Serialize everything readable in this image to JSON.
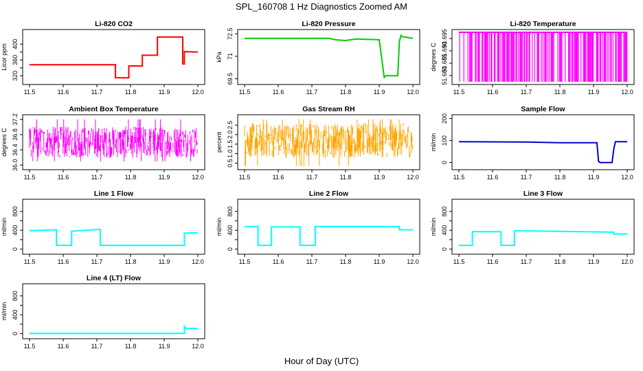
{
  "figure": {
    "title": "SPL_160708 1 Hz Diagnostics Zoomed AM",
    "xlabel": "Hour of Day (UTC)"
  },
  "chart_data": [
    {
      "type": "line",
      "title": "Li-820 CO2",
      "ylabel": "Licor ppm",
      "color": "#ff0000",
      "xlim": [
        11.5,
        12.0
      ],
      "ylim": [
        305,
        430
      ],
      "xticks": [
        "11.5",
        "11.6",
        "11.7",
        "11.8",
        "11.9",
        "12.0"
      ],
      "yticks": [
        320,
        360,
        400
      ],
      "yticks_extra": [
        340,
        380
      ],
      "series": [
        {
          "x": [
            11.5,
            11.755,
            11.755,
            11.755,
            11.795,
            11.795,
            11.835,
            11.835,
            11.88,
            11.88,
            11.955,
            11.955,
            11.96,
            11.96,
            12.0
          ],
          "y": [
            348,
            348,
            350,
            315,
            315,
            345,
            345,
            372,
            372,
            418,
            418,
            350,
            350,
            381,
            380
          ]
        }
      ]
    },
    {
      "type": "line",
      "title": "Li-820 Pressure",
      "ylabel": "kPa",
      "color": "#00cc00",
      "xlim": [
        11.5,
        12.0
      ],
      "ylim": [
        69.3,
        72.6
      ],
      "xticks": [
        "11.5",
        "11.6",
        "11.7",
        "11.8",
        "11.9",
        "12.0"
      ],
      "yticks": [
        69.5,
        71.0,
        72.5
      ],
      "series": [
        {
          "x": [
            11.5,
            11.75,
            11.77,
            11.8,
            11.83,
            11.9,
            11.915,
            11.92,
            11.955,
            11.96,
            11.965,
            11.97,
            12.0
          ],
          "y": [
            72.2,
            72.2,
            72.1,
            72.05,
            72.15,
            72.1,
            69.6,
            69.7,
            69.7,
            72.0,
            72.4,
            72.3,
            72.2
          ]
        }
      ]
    },
    {
      "type": "line",
      "title": "Li-820 Temperature",
      "ylabel": "degrees C",
      "color": "#ff00ff",
      "xlim": [
        11.5,
        12.0
      ],
      "ylim": [
        51.6775,
        51.6975
      ],
      "xticks": [
        "11.5",
        "11.6",
        "11.7",
        "11.8",
        "11.9",
        "12.0"
      ],
      "yticks": [
        51.68,
        51.685,
        51.69,
        51.695
      ],
      "yticks_labels": [
        "51.680",
        "51.685",
        "51.690",
        "51.695"
      ],
      "series": [
        {
          "x": [
            11.5,
            12.0
          ],
          "y": [
            51.6975,
            51.6975
          ]
        }
      ],
      "note_values": "toggles between 51.6775 and 51.6975"
    },
    {
      "type": "line",
      "title": "Ambient Box Temperature",
      "ylabel": "degrees C",
      "color": "#ff00ff",
      "xlim": [
        11.5,
        12.0
      ],
      "ylim": [
        35.95,
        37.25
      ],
      "xticks": [
        "11.5",
        "11.6",
        "11.7",
        "11.8",
        "11.9",
        "12.0"
      ],
      "yticks": [
        36.0,
        36.4,
        36.8,
        37.2
      ],
      "yticks_labels": [
        "36.0",
        "36.4",
        "36.8",
        "37.2"
      ],
      "series": [
        {
          "x": [
            11.5,
            12.0
          ],
          "y": [
            36.6,
            36.6
          ]
        }
      ],
      "range": [
        36.1,
        37.2
      ]
    },
    {
      "type": "line",
      "title": "Gas Stream RH",
      "ylabel": "percent",
      "color": "#ffa500",
      "xlim": [
        11.5,
        12.0
      ],
      "ylim": [
        0.3,
        2.9
      ],
      "xticks": [
        "11.5",
        "11.6",
        "11.7",
        "11.8",
        "11.9",
        "12.0"
      ],
      "yticks": [
        0.5,
        1.0,
        1.5,
        2.0,
        2.5
      ],
      "yticks_labels": [
        "0.5",
        "1.0",
        "1.5",
        "2.0",
        "2.5"
      ],
      "series": [
        {
          "x": [
            11.5,
            12.0
          ],
          "y": [
            1.7,
            1.7
          ]
        }
      ],
      "range": [
        0.35,
        2.8
      ]
    },
    {
      "type": "line",
      "title": "Sample Flow",
      "ylabel": "ml/min",
      "color": "#0000cc",
      "xlim": [
        11.5,
        12.0
      ],
      "ylim": [
        -20,
        205
      ],
      "xticks": [
        "11.5",
        "11.6",
        "11.7",
        "11.8",
        "11.9",
        "12.0"
      ],
      "yticks": [
        0,
        100,
        200
      ],
      "series": [
        {
          "x": [
            11.5,
            11.7,
            11.8,
            11.91,
            11.915,
            11.92,
            11.955,
            11.96,
            11.965,
            12.0
          ],
          "y": [
            95,
            93,
            90,
            90,
            5,
            0,
            0,
            60,
            95,
            95
          ]
        }
      ]
    },
    {
      "type": "line",
      "title": "Line 1 Flow",
      "ylabel": "ml/min",
      "color": "#00ffff",
      "xlim": [
        11.5,
        12.0
      ],
      "ylim": [
        -50,
        1000
      ],
      "xticks": [
        "11.5",
        "11.6",
        "11.7",
        "11.8",
        "11.9",
        "12.0"
      ],
      "yticks": [
        0,
        400,
        800
      ],
      "yticks_extra": [
        200,
        600
      ],
      "series": [
        {
          "x": [
            11.5,
            11.58,
            11.58,
            11.625,
            11.625,
            11.71,
            11.71,
            11.96,
            11.96,
            12.0
          ],
          "y": [
            390,
            410,
            80,
            80,
            380,
            420,
            80,
            80,
            340,
            350
          ]
        }
      ]
    },
    {
      "type": "line",
      "title": "Line 2 Flow",
      "ylabel": "ml/min",
      "color": "#00ffff",
      "xlim": [
        11.5,
        12.0
      ],
      "ylim": [
        -50,
        1000
      ],
      "xticks": [
        "11.5",
        "11.6",
        "11.7",
        "11.8",
        "11.9",
        "12.0"
      ],
      "yticks": [
        0,
        400,
        800
      ],
      "yticks_extra": [
        200,
        600
      ],
      "series": [
        {
          "x": [
            11.5,
            11.54,
            11.54,
            11.58,
            11.58,
            11.665,
            11.665,
            11.71,
            11.71,
            11.96,
            11.96,
            12.0
          ],
          "y": [
            480,
            480,
            80,
            80,
            470,
            470,
            80,
            80,
            480,
            480,
            410,
            410
          ]
        }
      ]
    },
    {
      "type": "line",
      "title": "Line 3 Flow",
      "ylabel": "ml/min",
      "color": "#00ffff",
      "xlim": [
        11.5,
        12.0
      ],
      "ylim": [
        -50,
        1000
      ],
      "xticks": [
        "11.5",
        "11.6",
        "11.7",
        "11.8",
        "11.9",
        "12.0"
      ],
      "yticks": [
        0,
        400,
        800
      ],
      "yticks_extra": [
        200,
        600
      ],
      "series": [
        {
          "x": [
            11.5,
            11.54,
            11.54,
            11.625,
            11.625,
            11.665,
            11.665,
            11.96,
            11.96,
            12.0
          ],
          "y": [
            80,
            80,
            370,
            370,
            80,
            80,
            390,
            360,
            320,
            320
          ]
        }
      ]
    },
    {
      "type": "line",
      "title": "Line 4 (LT) Flow",
      "ylabel": "ml/min",
      "color": "#00ffff",
      "xlim": [
        11.5,
        12.0
      ],
      "ylim": [
        -50,
        1000
      ],
      "xticks": [
        "11.5",
        "11.6",
        "11.7",
        "11.8",
        "11.9",
        "12.0"
      ],
      "yticks": [
        0,
        400,
        800
      ],
      "yticks_extra": [
        200,
        600
      ],
      "series": [
        {
          "x": [
            11.5,
            11.96,
            11.96,
            11.965,
            12.0
          ],
          "y": [
            5,
            5,
            150,
            110,
            110
          ]
        }
      ]
    }
  ]
}
